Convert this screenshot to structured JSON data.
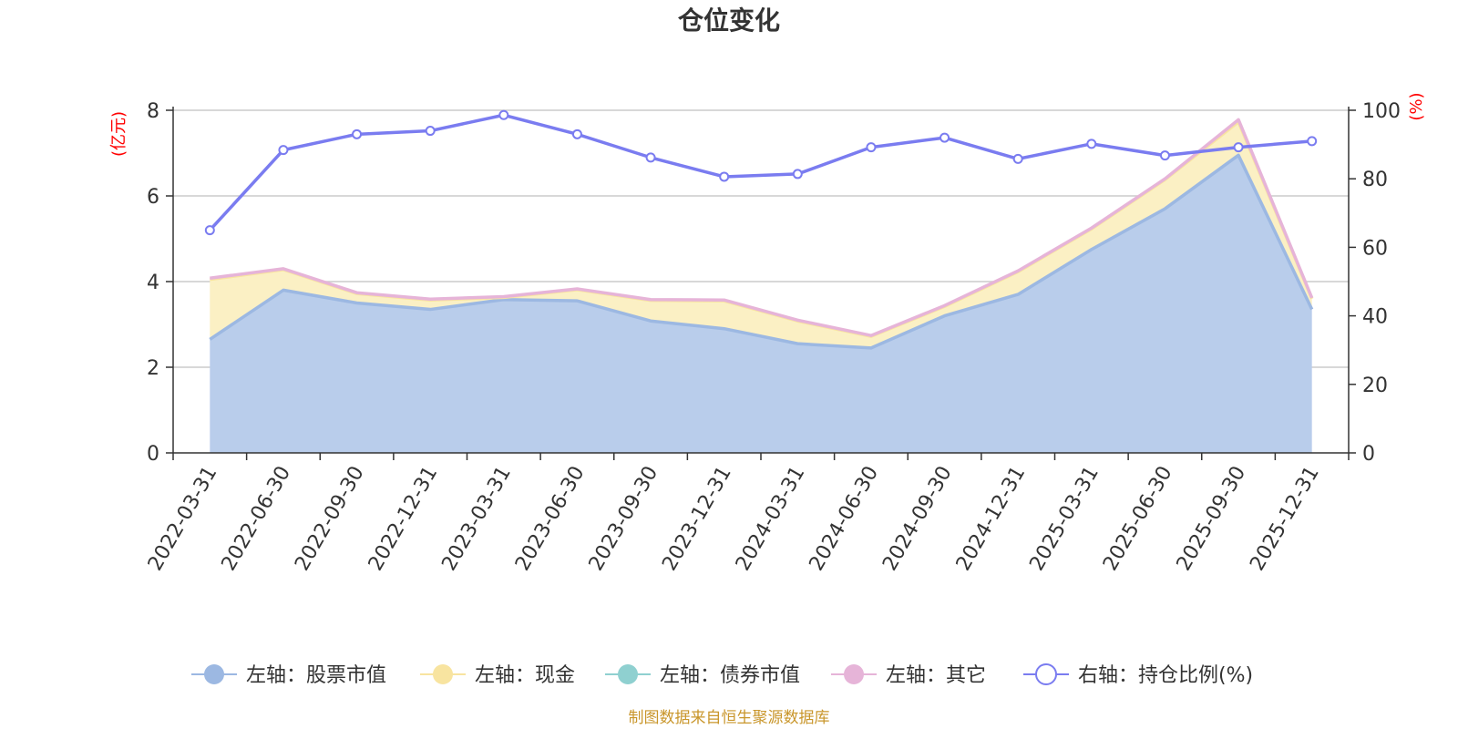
{
  "chart_data": {
    "type": "area",
    "title": "仓位变化",
    "categories": [
      "2022-03-31",
      "2022-06-30",
      "2022-09-30",
      "2022-12-31",
      "2023-03-31",
      "2023-06-30",
      "2023-09-30",
      "2023-12-31",
      "2024-03-31",
      "2024-06-30",
      "2024-09-30",
      "2024-12-31",
      "2025-03-31",
      "2025-06-30",
      "2025-09-30",
      "2025-12-31"
    ],
    "left_axis": {
      "unit": "(亿元)",
      "min": 0,
      "max": 8,
      "ticks": [
        "0",
        "2",
        "4",
        "6",
        "8"
      ]
    },
    "right_axis": {
      "unit": "(%)",
      "min": 0,
      "max": 100,
      "ticks": [
        "0",
        "20",
        "40",
        "60",
        "80",
        "100"
      ]
    },
    "series": [
      {
        "name": "左轴：股票市值",
        "axis": "left",
        "kind": "stacked-area",
        "color": "#9cb8e2",
        "fill": "#b9cdeb",
        "values": [
          2.65,
          3.8,
          3.5,
          3.35,
          3.58,
          3.55,
          3.08,
          2.9,
          2.55,
          2.45,
          3.2,
          3.7,
          4.75,
          5.7,
          6.95,
          3.35
        ]
      },
      {
        "name": "左轴：现金",
        "axis": "left",
        "kind": "stacked-area",
        "color": "#f8e4a0",
        "fill": "#fbf0c4",
        "values": [
          1.4,
          0.48,
          0.22,
          0.22,
          0.05,
          0.26,
          0.48,
          0.65,
          0.53,
          0.27,
          0.22,
          0.53,
          0.48,
          0.68,
          0.78,
          0.25
        ]
      },
      {
        "name": "左轴：债券市值",
        "axis": "left",
        "kind": "stacked-area",
        "color": "#8fd0d0",
        "fill": "#b4e0e0",
        "values": [
          0,
          0,
          0,
          0,
          0,
          0,
          0,
          0,
          0,
          0,
          0,
          0,
          0,
          0,
          0,
          0
        ]
      },
      {
        "name": "左轴：其它",
        "axis": "left",
        "kind": "stacked-area",
        "color": "#e6b4d8",
        "fill": "#f0cfe6",
        "values": [
          0.03,
          0.02,
          0.02,
          0.02,
          0.02,
          0.02,
          0.02,
          0.02,
          0.02,
          0.02,
          0.02,
          0.02,
          0.02,
          0.02,
          0.05,
          0.02
        ]
      },
      {
        "name": "右轴：持仓比例(%)",
        "axis": "right",
        "kind": "line",
        "color": "#7a7cf0",
        "values": [
          65.0,
          88.4,
          93.0,
          94.0,
          98.6,
          93.0,
          86.2,
          80.6,
          81.4,
          89.2,
          92.0,
          85.8,
          90.2,
          86.8,
          89.2,
          91.0
        ]
      }
    ],
    "grid": true,
    "legend_position": "bottom"
  },
  "source_note": "制图数据来自恒生聚源数据库"
}
